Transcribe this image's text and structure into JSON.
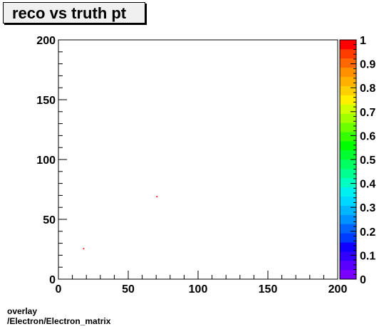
{
  "chart_data": {
    "type": "heatmap",
    "title": "reco vs truth pt",
    "xlim": [
      0,
      200
    ],
    "ylim": [
      0,
      200
    ],
    "x_ticks": [
      "0",
      "50",
      "100",
      "150",
      "200"
    ],
    "y_ticks": [
      "0",
      "50",
      "100",
      "150",
      "200"
    ],
    "z_range": [
      0,
      1
    ],
    "z_ticks": [
      "0",
      "0.1",
      "0.2",
      "0.3",
      "0.4",
      "0.5",
      "0.6",
      "0.7",
      "0.8",
      "0.9",
      "1"
    ],
    "points": [
      {
        "x": 70.5,
        "y": 69,
        "z": 1
      },
      {
        "x": 18,
        "y": 25.5,
        "z": 1
      }
    ],
    "grid": false,
    "colors": [
      "#7a00ff",
      "#5a00ff",
      "#3200ff",
      "#1000ff",
      "#003cff",
      "#0064ff",
      "#0092ff",
      "#00b6ff",
      "#00d8ff",
      "#00f0f0",
      "#00ffc0",
      "#00ff90",
      "#00ff60",
      "#00ff30",
      "#00ff00",
      "#36ff00",
      "#6cff00",
      "#a2ff00",
      "#d0ff00",
      "#fff000",
      "#ffd000",
      "#ffb000",
      "#ff9000",
      "#ff6800",
      "#ff3c00",
      "#ff0000"
    ]
  },
  "footer": {
    "line1": "overlay",
    "line2": "/Electron/Electron_matrix"
  }
}
